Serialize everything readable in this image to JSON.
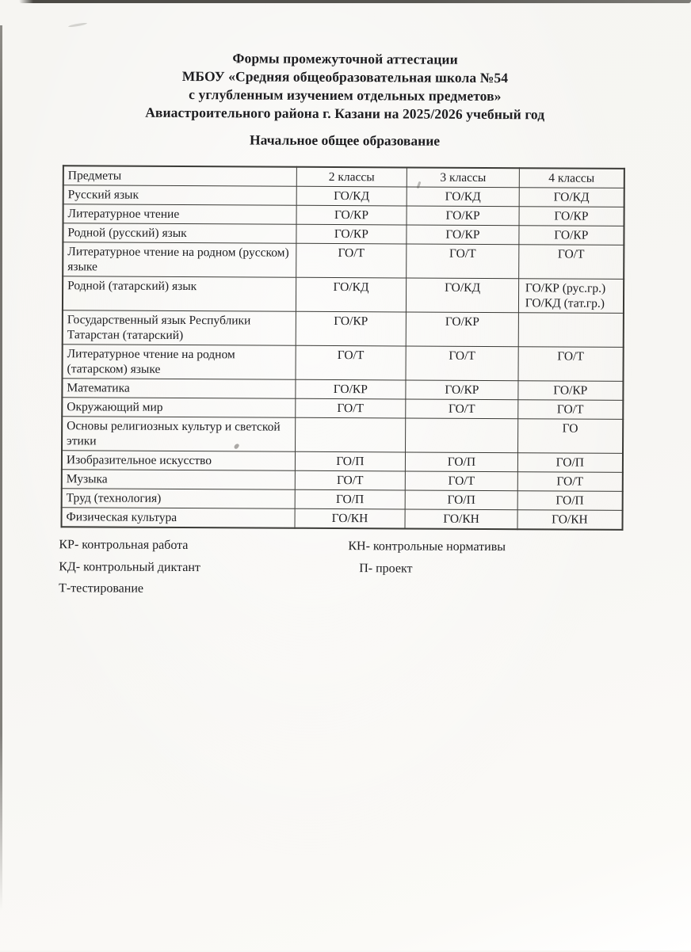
{
  "document": {
    "title_lines": [
      "Формы промежуточной аттестации",
      "МБОУ «Средняя общеобразовательная школа №54",
      "с углубленным изучением отдельных предметов»",
      "Авиастроительного района г. Казани на 2025/2026 учебный год"
    ],
    "section_title": "Начальное общее образование"
  },
  "table": {
    "headers": [
      "Предметы",
      "2 классы",
      "3 классы",
      "4 классы"
    ],
    "rows": [
      {
        "subject": "Русский язык",
        "c2": "ГО/КД",
        "c3": "ГО/КД",
        "c4": "ГО/КД"
      },
      {
        "subject": "Литературное чтение",
        "c2": "ГО/КР",
        "c3": "ГО/КР",
        "c4": "ГО/КР"
      },
      {
        "subject": "Родной (русский) язык",
        "c2": "ГО/КР",
        "c3": "ГО/КР",
        "c4": "ГО/КР"
      },
      {
        "subject": "Литературное чтение на родном (русском) языке",
        "c2": "ГО/Т",
        "c3": "ГО/Т",
        "c4": "ГО/Т"
      },
      {
        "subject": "Родной (татарский) язык",
        "c2": "ГО/КД",
        "c3": "ГО/КД",
        "c4": "ГО/КР (рус.гр.)\nГО/КД (тат.гр.)"
      },
      {
        "subject": "Государственный язык Республики Татарстан (татарский)",
        "c2": "ГО/КР",
        "c3": "ГО/КР",
        "c4": ""
      },
      {
        "subject": "Литературное чтение на родном (татарском) языке",
        "c2": "ГО/Т",
        "c3": "ГО/Т",
        "c4": "ГО/Т"
      },
      {
        "subject": "Математика",
        "c2": "ГО/КР",
        "c3": "ГО/КР",
        "c4": "ГО/КР"
      },
      {
        "subject": "Окружающий мир",
        "c2": "ГО/Т",
        "c3": "ГО/Т",
        "c4": "ГО/Т"
      },
      {
        "subject": "Основы религиозных культур и светской этики",
        "c2": "",
        "c3": "",
        "c4": "ГО"
      },
      {
        "subject": "Изобразительное искусство",
        "c2": "ГО/П",
        "c3": "ГО/П",
        "c4": "ГО/П"
      },
      {
        "subject": "Музыка",
        "c2": "ГО/Т",
        "c3": "ГО/Т",
        "c4": "ГО/Т"
      },
      {
        "subject": "Труд (технология)",
        "c2": "ГО/П",
        "c3": "ГО/П",
        "c4": "ГО/П"
      },
      {
        "subject": "Физическая культура",
        "c2": "ГО/КН",
        "c3": "ГО/КН",
        "c4": "ГО/КН"
      }
    ]
  },
  "legend": {
    "left_items": [
      "КР- контрольная работа",
      "КД- контрольный диктант",
      "Т-тестирование"
    ],
    "right_items": [
      "КН- контрольные нормативы",
      "П- проект"
    ]
  },
  "colors": {
    "ink": "#1d1d20",
    "paper": "#f8f7f3",
    "table_border": "#3b3b37"
  }
}
